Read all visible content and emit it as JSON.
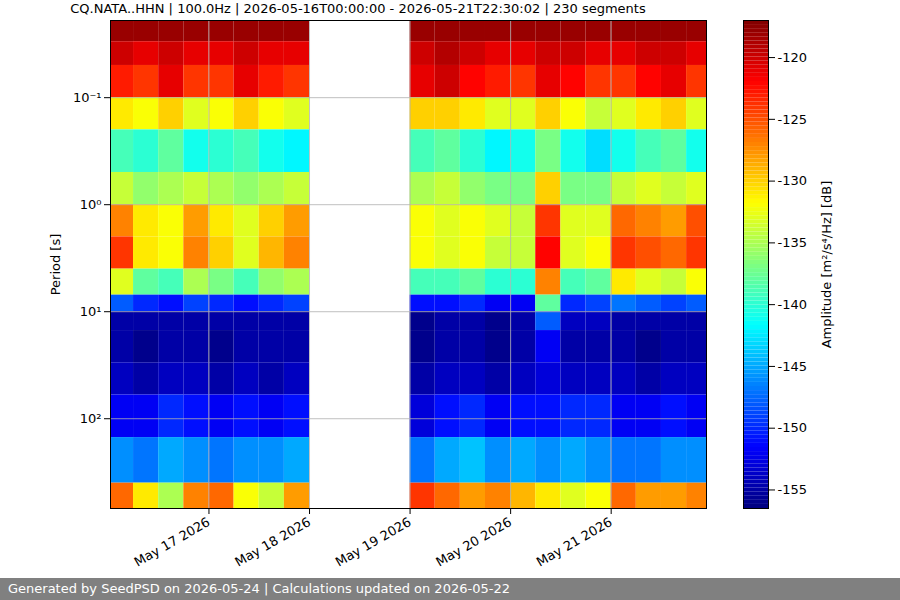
{
  "chart_data": {
    "type": "heatmap",
    "title": "CQ.NATA..HHN | 100.0Hz | 2026-05-16T00:00:00 - 2026-05-21T22:30:02 | 230 segments",
    "caption": "Generated by SeedPSD on 2026-05-24 | Calculations updated on 2026-05-22",
    "ylabel": "Period [s]",
    "log": "y",
    "grid": true,
    "color": "jet",
    "xlim": [
      "2026-05-16T00:30",
      "2026-05-21T22:45"
    ],
    "xticks": [
      {
        "value": "2026-05-17T00:00",
        "label": "May 17 2026"
      },
      {
        "value": "2026-05-18T00:00",
        "label": "May 18 2026"
      },
      {
        "value": "2026-05-19T00:00",
        "label": "May 19 2026"
      },
      {
        "value": "2026-05-20T00:00",
        "label": "May 20 2026"
      },
      {
        "value": "2026-05-21T00:00",
        "label": "May 21 2026"
      }
    ],
    "ylim": [
      0.019,
      690
    ],
    "yticks": [
      {
        "value": 0.1,
        "label": "10⁻¹"
      },
      {
        "value": 1,
        "label": "10⁰"
      },
      {
        "value": 10,
        "label": "10¹"
      },
      {
        "value": 100,
        "label": "10²"
      }
    ],
    "x": [
      "2026-05-16T00:00",
      "2026-05-16T06:00",
      "2026-05-16T12:00",
      "2026-05-16T18:00",
      "2026-05-17T00:00",
      "2026-05-17T06:00",
      "2026-05-17T12:00",
      "2026-05-17T18:00",
      "2026-05-18T00:00",
      "2026-05-18T06:00",
      "2026-05-18T12:00",
      "2026-05-18T18:00",
      "2026-05-19T00:00",
      "2026-05-19T06:00",
      "2026-05-19T12:00",
      "2026-05-19T18:00",
      "2026-05-20T00:00",
      "2026-05-20T06:00",
      "2026-05-20T12:00",
      "2026-05-20T18:00",
      "2026-05-21T00:00",
      "2026-05-21T06:00",
      "2026-05-21T12:00",
      "2026-05-21T18:00",
      "2026-05-22T00:00"
    ],
    "period_edges": [
      0.019,
      0.03,
      0.05,
      0.1,
      0.2,
      0.5,
      1,
      2,
      4,
      7,
      10,
      15,
      30,
      60,
      150,
      400,
      690
    ],
    "values": [
      [
        -118,
        -120,
        -123,
        -131,
        -139,
        -134,
        -127,
        -124,
        -133,
        -148,
        -155,
        -155,
        -154,
        -152,
        -146,
        -126
      ],
      [
        -118,
        -121,
        -124,
        -132,
        -140,
        -136,
        -131,
        -131,
        -138,
        -150,
        -155,
        -156,
        -155,
        -152,
        -147,
        -131
      ],
      [
        -118,
        -120,
        -121,
        -130,
        -138,
        -135,
        -132,
        -132,
        -139,
        -151,
        -155,
        -155,
        -154,
        -150,
        -145,
        -135
      ],
      [
        -118,
        -121,
        -124,
        -133,
        -141,
        -134,
        -128,
        -127,
        -135,
        -149,
        -155,
        -155,
        -154,
        -151,
        -146,
        -127
      ],
      [
        -118,
        -121,
        -124,
        -132,
        -140,
        -135,
        -131,
        -130,
        -137,
        -150,
        -155,
        -156,
        -155,
        -152,
        -147,
        -126
      ],
      [
        -118,
        -120,
        -121,
        -130,
        -139,
        -136,
        -133,
        -133,
        -139,
        -151,
        -155,
        -155,
        -154,
        -151,
        -146,
        -132
      ],
      [
        -118,
        -121,
        -123,
        -132,
        -141,
        -135,
        -130,
        -129,
        -136,
        -150,
        -155,
        -155,
        -155,
        -152,
        -146,
        -134
      ],
      [
        -118,
        -121,
        -124,
        -133,
        -142,
        -134,
        -128,
        -127,
        -135,
        -149,
        -155,
        -155,
        -154,
        -151,
        -145,
        -128
      ],
      null,
      null,
      null,
      null,
      [
        -118,
        -120,
        -121,
        -130,
        -139,
        -135,
        -132,
        -132,
        -139,
        -151,
        -156,
        -156,
        -155,
        -153,
        -147,
        -124
      ],
      [
        -118,
        -119,
        -120,
        -130,
        -138,
        -134,
        -133,
        -133,
        -139,
        -151,
        -155,
        -155,
        -154,
        -151,
        -145,
        -126
      ],
      [
        -118,
        -120,
        -122,
        -131,
        -140,
        -136,
        -132,
        -132,
        -138,
        -150,
        -155,
        -155,
        -154,
        -150,
        -144,
        -128
      ],
      [
        -118,
        -121,
        -123,
        -133,
        -142,
        -137,
        -133,
        -134,
        -140,
        -152,
        -156,
        -156,
        -155,
        -152,
        -146,
        -127
      ],
      [
        -118,
        -121,
        -124,
        -133,
        -141,
        -137,
        -134,
        -134,
        -140,
        -152,
        -155,
        -155,
        -154,
        -151,
        -145,
        -129
      ],
      [
        -118,
        -120,
        -121,
        -130,
        -137,
        -130,
        -124,
        -122,
        -127,
        -138,
        -148,
        -152,
        -153,
        -151,
        -146,
        -131
      ],
      [
        -118,
        -120,
        -122,
        -132,
        -141,
        -137,
        -133,
        -133,
        -139,
        -150,
        -154,
        -155,
        -154,
        -150,
        -145,
        -133
      ],
      [
        -118,
        -121,
        -124,
        -134,
        -143,
        -137,
        -133,
        -132,
        -138,
        -149,
        -154,
        -155,
        -154,
        -150,
        -146,
        -132
      ],
      [
        -118,
        -121,
        -124,
        -133,
        -141,
        -134,
        -126,
        -124,
        -131,
        -147,
        -155,
        -155,
        -154,
        -152,
        -147,
        -126
      ],
      [
        -118,
        -120,
        -122,
        -131,
        -139,
        -133,
        -127,
        -125,
        -133,
        -148,
        -155,
        -156,
        -155,
        -152,
        -147,
        -128
      ],
      [
        -118,
        -120,
        -121,
        -130,
        -138,
        -134,
        -128,
        -126,
        -134,
        -149,
        -155,
        -155,
        -154,
        -151,
        -146,
        -128
      ],
      [
        -118,
        -121,
        -124,
        -133,
        -141,
        -133,
        -125,
        -124,
        -132,
        -148,
        -155,
        -155,
        -154,
        -152,
        -146,
        -127
      ]
    ],
    "colorbar": {
      "label": "Amplitude [m²/s⁴/Hz] [dB]",
      "range": [
        -156.5,
        -117
      ],
      "ticks": [
        -155,
        -150,
        -145,
        -140,
        -135,
        -130,
        -125,
        -120
      ]
    }
  }
}
